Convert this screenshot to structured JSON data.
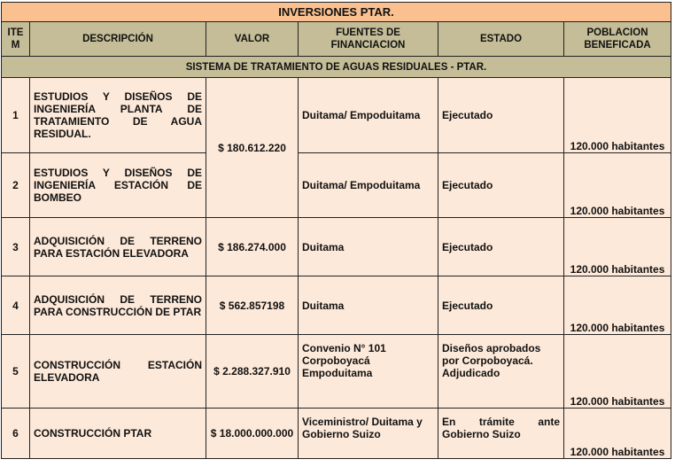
{
  "title": "INVERSIONES PTAR.",
  "headers": [
    "ITE M",
    "DESCRIPCIÓN",
    "VALOR",
    "FUENTES DE FINANCIACION",
    "ESTADO",
    "POBLACION BENEFICADA"
  ],
  "section": "SISTEMA DE TRATAMIENTO DE AGUAS  RESIDUALES - PTAR.",
  "rows": [
    {
      "item": "1",
      "desc": "ESTUDIOS Y DISEÑOS DE INGENIERÍA PLANTA DE TRATAMIENTO DE AGUA RESIDUAL.",
      "valor": "$ 180.612.220",
      "fuentes": "Duitama/ Empoduitama",
      "estado": "Ejecutado",
      "poblacion": "120.000 habitantes"
    },
    {
      "item": "2",
      "desc": "ESTUDIOS Y DISEÑOS DE INGENIERÍA ESTACIÓN DE BOMBEO",
      "fuentes": "Duitama/ Empoduitama",
      "estado": "Ejecutado",
      "poblacion": "120.000 habitantes"
    },
    {
      "item": "3",
      "desc": "ADQUISICIÓN DE TERRENO PARA ESTACIÓN ELEVADORA",
      "valor": "$ 186.274.000",
      "fuentes": "Duitama",
      "estado": "Ejecutado",
      "poblacion": "120.000 habitantes"
    },
    {
      "item": "4",
      "desc": "ADQUISICIÓN DE TERRENO PARA CONSTRUCCIÓN DE PTAR",
      "valor": "$ 562.857198",
      "fuentes": "Duitama",
      "estado": "Ejecutado",
      "poblacion": "120.000 habitantes"
    },
    {
      "item": "5",
      "desc": "CONSTRUCCIÓN ESTACIÓN ELEVADORA",
      "valor": "$ 2.288.327.910",
      "fuentes": "Convenio N° 101 Corpoboyacá Empoduitama",
      "estado": "Diseños aprobados por Corpoboyacá. Adjudicado",
      "poblacion": "120.000 habitantes"
    },
    {
      "item": "6",
      "desc": "CONSTRUCCIÓN PTAR",
      "valor": "$ 18.000.000.000",
      "fuentes": "Viceministro/ Duitama y Gobierno Suizo",
      "estado": "En trámite ante Gobierno Suizo",
      "poblacion": "120.000 habitantes"
    }
  ]
}
